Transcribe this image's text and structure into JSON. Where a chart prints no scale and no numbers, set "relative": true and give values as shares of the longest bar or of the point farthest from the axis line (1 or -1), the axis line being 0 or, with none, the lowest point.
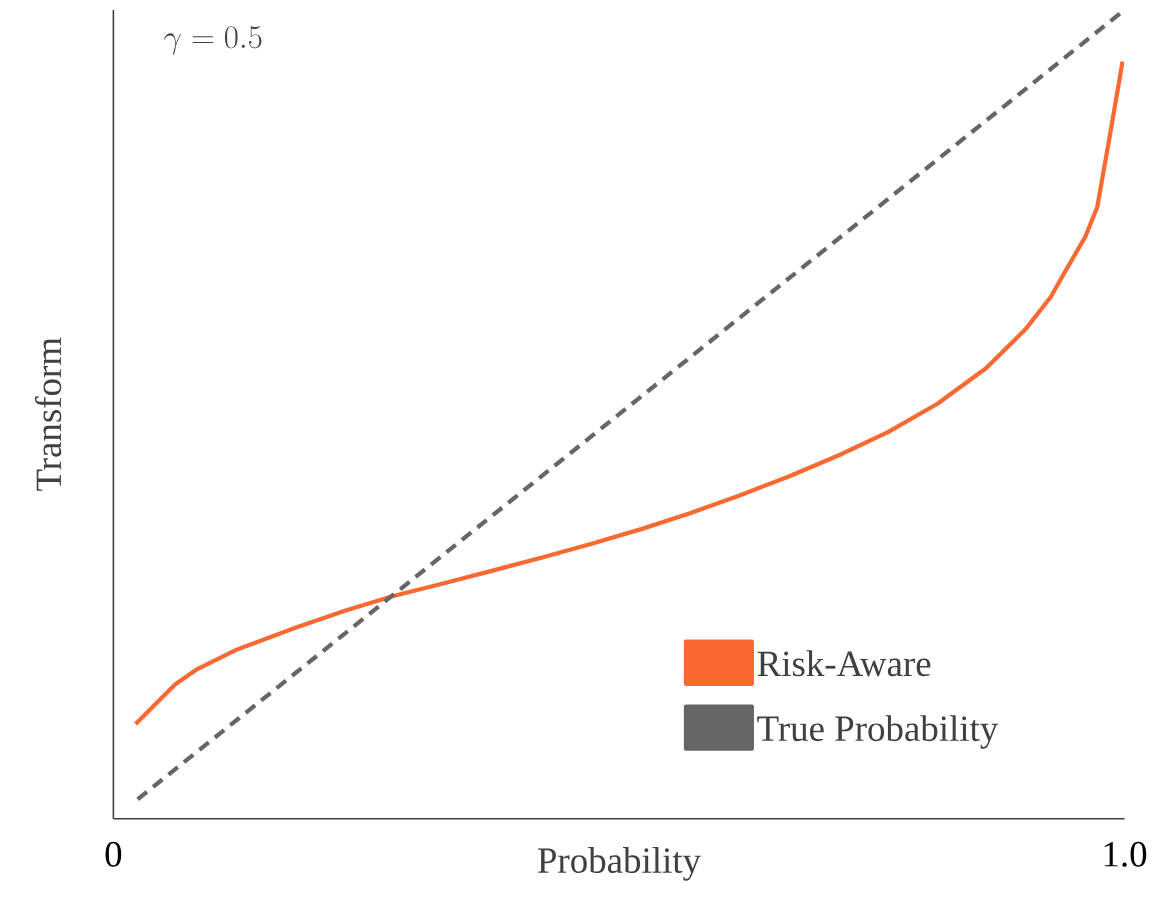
{
  "chart_data": {
    "type": "line",
    "relative": true,
    "xlabel": "Probability",
    "ylabel": "Transform",
    "annotations": [
      "\\gamma = 0.5"
    ],
    "xlim": [
      0,
      1
    ],
    "xticks": [
      0,
      {
        "value": 1,
        "label": "1.0"
      }
    ],
    "legend": "bottom right",
    "series": [
      {
        "name": "Risk-Aware",
        "color": "#f96a32",
        "line_style": "solid",
        "x": [
          0.022,
          0.061,
          0.083,
          0.122,
          0.18,
          0.229,
          0.276,
          0.327,
          0.376,
          0.424,
          0.473,
          0.522,
          0.571,
          0.62,
          0.668,
          0.717,
          0.766,
          0.815,
          0.863,
          0.902,
          0.927,
          0.941,
          0.961,
          0.973,
          0.985,
          0.998
        ],
        "values": [
          0.117,
          0.166,
          0.185,
          0.209,
          0.236,
          0.257,
          0.275,
          0.291,
          0.307,
          0.323,
          0.34,
          0.358,
          0.378,
          0.4,
          0.423,
          0.449,
          0.478,
          0.513,
          0.557,
          0.605,
          0.645,
          0.676,
          0.719,
          0.756,
          0.841,
          0.936
        ]
      },
      {
        "name": "True Probability",
        "color": "#666666",
        "line_style": "dashed",
        "x": [
          0.024,
          1
        ],
        "values": [
          0.024,
          1
        ]
      }
    ]
  }
}
